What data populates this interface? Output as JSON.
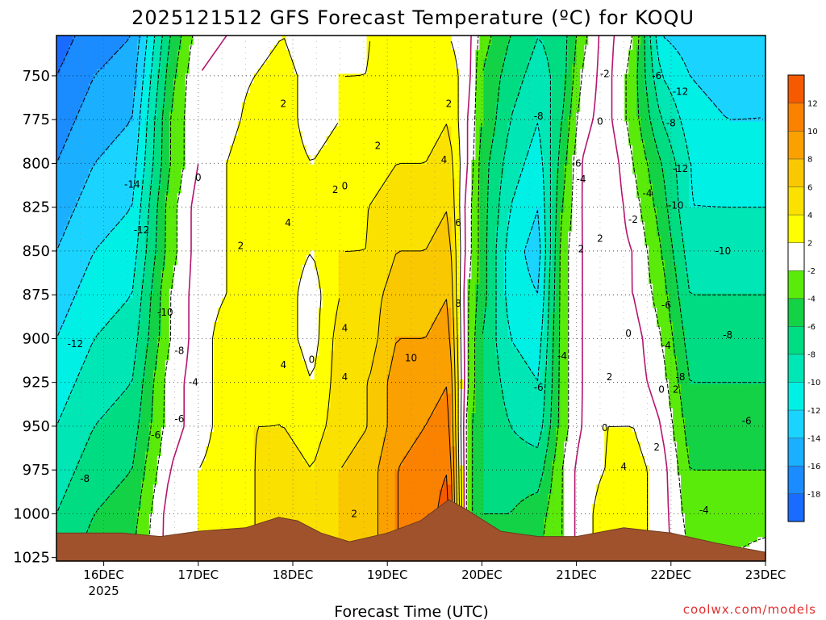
{
  "title": "2025121512 GFS Forecast Temperature (ºC) for KOQU",
  "credit": "coolwx.com/models",
  "chart_data": {
    "type": "heatmap",
    "title": "2025121512 GFS Forecast Temperature (ºC) for KOQU",
    "xlabel": "Forecast Time (UTC)",
    "ylabel": "",
    "x_ticks": [
      {
        "label": "16DEC",
        "sub": "2025",
        "t": 1
      },
      {
        "label": "17DEC",
        "sub": "",
        "t": 2
      },
      {
        "label": "18DEC",
        "sub": "",
        "t": 3
      },
      {
        "label": "19DEC",
        "sub": "",
        "t": 4
      },
      {
        "label": "20DEC",
        "sub": "",
        "t": 5
      },
      {
        "label": "21DEC",
        "sub": "",
        "t": 6
      },
      {
        "label": "22DEC",
        "sub": "",
        "t": 7
      },
      {
        "label": "23DEC",
        "sub": "",
        "t": 8
      }
    ],
    "xlim": [
      0.5,
      8
    ],
    "y_ticks": [
      750,
      775,
      800,
      825,
      850,
      875,
      900,
      925,
      950,
      975,
      1000,
      1025
    ],
    "ylim": [
      727,
      1027
    ],
    "grid": true,
    "colorbar": {
      "bounds": [
        -20,
        -18,
        -16,
        -14,
        -12,
        -10,
        -8,
        -6,
        -4,
        -2,
        2,
        4,
        6,
        8,
        10,
        12,
        14
      ],
      "colors": [
        "#1a6bff",
        "#1a8cff",
        "#1ab0ff",
        "#1ad4ff",
        "#00f0e6",
        "#00e6b4",
        "#00dc82",
        "#14d246",
        "#5aeb0a",
        "#ffffff",
        "#ffff00",
        "#fae100",
        "#fac800",
        "#faa000",
        "#fa8200",
        "#f55a00"
      ],
      "labels": [
        -18,
        -16,
        -14,
        -12,
        -10,
        -8,
        -6,
        -4,
        -2,
        2,
        4,
        6,
        8,
        10,
        12
      ]
    },
    "terrain_color": "#a0522d",
    "terrain": [
      [
        0.5,
        1011
      ],
      [
        1.2,
        1011
      ],
      [
        1.6,
        1013
      ],
      [
        2.0,
        1010
      ],
      [
        2.5,
        1008
      ],
      [
        2.85,
        1002
      ],
      [
        3.05,
        1004
      ],
      [
        3.3,
        1011
      ],
      [
        3.6,
        1016
      ],
      [
        4.0,
        1011
      ],
      [
        4.35,
        1004
      ],
      [
        4.65,
        992
      ],
      [
        4.85,
        998
      ],
      [
        5.2,
        1010
      ],
      [
        5.6,
        1013
      ],
      [
        6.0,
        1013
      ],
      [
        6.5,
        1008
      ],
      [
        7.0,
        1011
      ],
      [
        7.5,
        1017
      ],
      [
        8.0,
        1022
      ]
    ],
    "columns": [
      {
        "t": 0.5,
        "v": [
          -19,
          -18,
          -17,
          -16,
          -15,
          -14,
          -13,
          -12,
          -11,
          -10,
          -9,
          -8,
          -7
        ]
      },
      {
        "t": 0.9,
        "v": [
          -17,
          -16,
          -15,
          -14,
          -13,
          -12,
          -11,
          -10,
          -9,
          -8,
          -7,
          -6,
          -5
        ]
      },
      {
        "t": 1.3,
        "v": [
          -16,
          -15,
          -14,
          -13,
          -12,
          -11,
          -10,
          -9,
          -8,
          -7,
          -6,
          -5,
          -4
        ]
      },
      {
        "t": 1.7,
        "v": [
          -6,
          -5,
          -4,
          -4,
          -3,
          -3,
          -2,
          -2,
          -1,
          -1,
          0,
          1,
          1
        ]
      },
      {
        "t": 2.0,
        "v": [
          -1,
          0,
          0,
          0,
          1,
          1,
          1,
          1,
          1,
          1,
          2,
          2,
          2
        ]
      },
      {
        "t": 2.3,
        "v": [
          0,
          1,
          1,
          2,
          2,
          2,
          2,
          3,
          3,
          3,
          3,
          3,
          3
        ]
      },
      {
        "t": 2.6,
        "v": [
          1,
          2,
          3,
          4,
          3,
          3,
          3,
          3,
          3,
          4,
          4,
          4,
          4
        ]
      },
      {
        "t": 2.9,
        "v": [
          2,
          3,
          3,
          3,
          3,
          3,
          3,
          3,
          4,
          4,
          5,
          5,
          5
        ]
      },
      {
        "t": 3.2,
        "v": [
          0,
          1,
          1,
          2,
          2,
          2,
          1,
          1,
          2,
          3,
          4,
          4,
          4
        ]
      },
      {
        "t": 3.5,
        "v": [
          1,
          2,
          2,
          3,
          3,
          4,
          4,
          5,
          5,
          5,
          6,
          6,
          6
        ]
      },
      {
        "t": 3.8,
        "v": [
          2,
          2,
          3,
          3,
          4,
          4,
          5,
          5,
          6,
          6,
          7,
          7,
          7
        ]
      },
      {
        "t": 4.1,
        "v": [
          2,
          3,
          3,
          4,
          5,
          6,
          7,
          8,
          9,
          9,
          10,
          10,
          10
        ]
      },
      {
        "t": 4.4,
        "v": [
          2,
          3,
          3,
          4,
          5,
          6,
          7,
          8,
          9,
          10,
          11,
          11,
          11
        ]
      },
      {
        "t": 4.65,
        "v": [
          2,
          3,
          4,
          5,
          6,
          7,
          8,
          9,
          10,
          11,
          12,
          13,
          13
        ]
      },
      {
        "t": 4.85,
        "v": [
          1,
          1,
          0,
          0,
          -1,
          -1,
          -2,
          -2,
          -2,
          -3,
          -3,
          -3,
          -3
        ]
      },
      {
        "t": 5.0,
        "v": [
          -3,
          -4,
          -4,
          -5,
          -5,
          -5,
          -5,
          -6,
          -6,
          -6,
          -6,
          -6,
          -6
        ]
      },
      {
        "t": 5.3,
        "v": [
          -6,
          -7,
          -8,
          -9,
          -10,
          -11,
          -11,
          -10,
          -9,
          -8,
          -7,
          -6,
          -5
        ]
      },
      {
        "t": 5.6,
        "v": [
          -8,
          -9,
          -10,
          -11,
          -12,
          -13,
          -12,
          -11,
          -10,
          -9,
          -7,
          -5,
          -4
        ]
      },
      {
        "t": 5.85,
        "v": [
          -7,
          -7,
          -6,
          -5,
          -4,
          -3,
          -3,
          -3,
          -3,
          -3,
          -2,
          -2,
          -2
        ]
      },
      {
        "t": 6.05,
        "v": [
          -3,
          -2,
          -1,
          0,
          0,
          0,
          0,
          0,
          0,
          0,
          1,
          1,
          1
        ]
      },
      {
        "t": 6.3,
        "v": [
          1,
          1,
          1,
          2,
          2,
          1,
          1,
          1,
          1,
          2,
          2,
          3,
          3
        ]
      },
      {
        "t": 6.6,
        "v": [
          -2,
          -3,
          -3,
          -2,
          -1,
          0,
          0,
          1,
          1,
          2,
          3,
          3,
          3
        ]
      },
      {
        "t": 6.9,
        "v": [
          -12,
          -10,
          -8,
          -6,
          -5,
          -4,
          -3,
          -2,
          -1,
          0,
          1,
          1,
          1
        ]
      },
      {
        "t": 7.2,
        "v": [
          -13,
          -12,
          -11,
          -10,
          -10,
          -9,
          -8,
          -7,
          -6,
          -5,
          -4,
          -3,
          -2
        ]
      },
      {
        "t": 7.6,
        "v": [
          -14,
          -13,
          -12,
          -11,
          -10,
          -9,
          -8,
          -7,
          -6,
          -5,
          -4,
          -3,
          -2
        ]
      },
      {
        "t": 8.0,
        "v": [
          -13,
          -12,
          -12,
          -11,
          -10,
          -9,
          -8,
          -7,
          -6,
          -5,
          -4,
          -3,
          -1
        ]
      }
    ],
    "levels": [
      727,
      750,
      775,
      800,
      825,
      850,
      875,
      900,
      925,
      950,
      975,
      1000,
      1027
    ],
    "contour_labels": [
      {
        "t": 0.7,
        "p": 903,
        "text": "-12"
      },
      {
        "t": 1.3,
        "p": 812,
        "text": "-14"
      },
      {
        "t": 1.4,
        "p": 838,
        "text": "-12"
      },
      {
        "t": 1.65,
        "p": 885,
        "text": "-10"
      },
      {
        "t": 1.8,
        "p": 907,
        "text": "-8"
      },
      {
        "t": 1.95,
        "p": 925,
        "text": "-4"
      },
      {
        "t": 1.55,
        "p": 955,
        "text": "-6"
      },
      {
        "t": 1.8,
        "p": 946,
        "text": "-6"
      },
      {
        "t": 0.8,
        "p": 980,
        "text": "-8"
      },
      {
        "t": 2.0,
        "p": 808,
        "text": "0"
      },
      {
        "t": 2.9,
        "p": 766,
        "text": "2"
      },
      {
        "t": 2.45,
        "p": 847,
        "text": "2"
      },
      {
        "t": 2.95,
        "p": 834,
        "text": "4"
      },
      {
        "t": 2.9,
        "p": 915,
        "text": "4"
      },
      {
        "t": 3.2,
        "p": 912,
        "text": "0"
      },
      {
        "t": 3.45,
        "p": 815,
        "text": "2"
      },
      {
        "t": 3.55,
        "p": 813,
        "text": "0"
      },
      {
        "t": 3.9,
        "p": 790,
        "text": "2"
      },
      {
        "t": 3.55,
        "p": 894,
        "text": "4"
      },
      {
        "t": 3.55,
        "p": 922,
        "text": "4"
      },
      {
        "t": 3.65,
        "p": 1000,
        "text": "2"
      },
      {
        "t": 4.25,
        "p": 911,
        "text": "10"
      },
      {
        "t": 4.65,
        "p": 766,
        "text": "2"
      },
      {
        "t": 4.6,
        "p": 798,
        "text": "4"
      },
      {
        "t": 4.75,
        "p": 834,
        "text": "6"
      },
      {
        "t": 4.75,
        "p": 880,
        "text": "8"
      },
      {
        "t": 5.6,
        "p": 928,
        "text": "-6"
      },
      {
        "t": 5.85,
        "p": 910,
        "text": "-4"
      },
      {
        "t": 5.6,
        "p": 773,
        "text": "-8"
      },
      {
        "t": 6.0,
        "p": 800,
        "text": "-6"
      },
      {
        "t": 6.05,
        "p": 809,
        "text": "-4"
      },
      {
        "t": 6.05,
        "p": 849,
        "text": "2"
      },
      {
        "t": 6.3,
        "p": 749,
        "text": "-2"
      },
      {
        "t": 6.25,
        "p": 776,
        "text": "0"
      },
      {
        "t": 6.25,
        "p": 843,
        "text": "2"
      },
      {
        "t": 6.6,
        "p": 832,
        "text": "-2"
      },
      {
        "t": 6.55,
        "p": 897,
        "text": "0"
      },
      {
        "t": 6.35,
        "p": 922,
        "text": "2"
      },
      {
        "t": 6.3,
        "p": 951,
        "text": "0"
      },
      {
        "t": 6.5,
        "p": 973,
        "text": "4"
      },
      {
        "t": 6.85,
        "p": 962,
        "text": "2"
      },
      {
        "t": 6.75,
        "p": 817,
        "text": "-4"
      },
      {
        "t": 6.85,
        "p": 750,
        "text": "-6"
      },
      {
        "t": 7.1,
        "p": 759,
        "text": "-12"
      },
      {
        "t": 7.0,
        "p": 777,
        "text": "-8"
      },
      {
        "t": 7.1,
        "p": 803,
        "text": "-12"
      },
      {
        "t": 7.05,
        "p": 824,
        "text": "-10"
      },
      {
        "t": 6.95,
        "p": 881,
        "text": "-6"
      },
      {
        "t": 6.95,
        "p": 904,
        "text": "-4"
      },
      {
        "t": 6.9,
        "p": 929,
        "text": "0"
      },
      {
        "t": 7.05,
        "p": 929,
        "text": "2"
      },
      {
        "t": 7.1,
        "p": 922,
        "text": "-8"
      },
      {
        "t": 7.55,
        "p": 850,
        "text": "-10"
      },
      {
        "t": 7.6,
        "p": 898,
        "text": "-8"
      },
      {
        "t": 7.8,
        "p": 947,
        "text": "-6"
      },
      {
        "t": 7.35,
        "p": 998,
        "text": "-4"
      }
    ]
  }
}
